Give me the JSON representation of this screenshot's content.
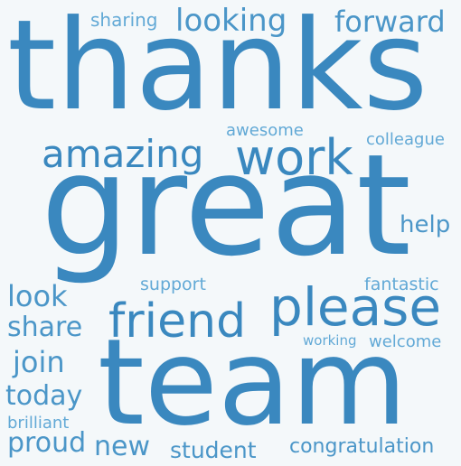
{
  "colors": {
    "background": "#f4f8fa",
    "word_dark": "#3a88bf",
    "word_mid": "#4b96c8",
    "word_light": "#62a9d6"
  },
  "words": [
    {
      "text": "thanks",
      "color": "#3a88bf"
    },
    {
      "text": "great",
      "color": "#3a88bf"
    },
    {
      "text": "team",
      "color": "#3a88bf"
    },
    {
      "text": "please",
      "color": "#3a88bf"
    },
    {
      "text": "friend",
      "color": "#3a88bf"
    },
    {
      "text": "work",
      "color": "#3a88bf"
    },
    {
      "text": "amazing",
      "color": "#3a88bf"
    },
    {
      "text": "looking",
      "color": "#4b96c8"
    },
    {
      "text": "forward",
      "color": "#4b96c8"
    },
    {
      "text": "sharing",
      "color": "#62a9d6"
    },
    {
      "text": "awesome",
      "color": "#62a9d6"
    },
    {
      "text": "colleague",
      "color": "#62a9d6"
    },
    {
      "text": "help",
      "color": "#4b96c8"
    },
    {
      "text": "look",
      "color": "#4b96c8"
    },
    {
      "text": "support",
      "color": "#62a9d6"
    },
    {
      "text": "fantastic",
      "color": "#62a9d6"
    },
    {
      "text": "share",
      "color": "#4b96c8"
    },
    {
      "text": "join",
      "color": "#4b96c8"
    },
    {
      "text": "working",
      "color": "#62a9d6"
    },
    {
      "text": "welcome",
      "color": "#62a9d6"
    },
    {
      "text": "today",
      "color": "#4b96c8"
    },
    {
      "text": "brilliant",
      "color": "#62a9d6"
    },
    {
      "text": "proud",
      "color": "#4b96c8"
    },
    {
      "text": "new",
      "color": "#4b96c8"
    },
    {
      "text": "student",
      "color": "#4b96c8"
    },
    {
      "text": "congratulation",
      "color": "#4b96c8"
    }
  ]
}
